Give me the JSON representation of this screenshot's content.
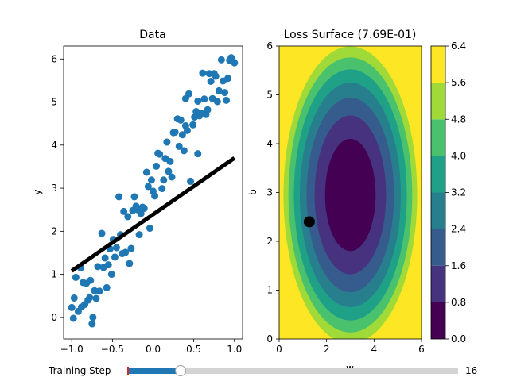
{
  "chart_data": [
    {
      "type": "scatter",
      "title": "Data",
      "xlabel": "x",
      "ylabel": "y",
      "xlim": [
        -1.1,
        1.1
      ],
      "ylim": [
        -0.5,
        6.3
      ],
      "xticks": [
        "-1.0",
        "-0.5",
        "0.0",
        "0.5",
        "1.0"
      ],
      "yticks": [
        "0",
        "1",
        "2",
        "3",
        "4",
        "5",
        "6"
      ],
      "series": [
        {
          "kind": "points",
          "color": "#1f77b4",
          "points": [
            [
              -1.0,
              0.23
            ],
            [
              -0.98,
              -0.02
            ],
            [
              -0.97,
              0.45
            ],
            [
              -0.95,
              0.93
            ],
            [
              -0.92,
              0.14
            ],
            [
              -0.89,
              1.15
            ],
            [
              -0.88,
              0.24
            ],
            [
              -0.86,
              0.81
            ],
            [
              -0.84,
              0.3
            ],
            [
              -0.82,
              0.79
            ],
            [
              -0.8,
              0.4
            ],
            [
              -0.78,
              0.46
            ],
            [
              -0.77,
              0.86
            ],
            [
              -0.75,
              -0.15
            ],
            [
              -0.74,
              0.0
            ],
            [
              -0.72,
              0.62
            ],
            [
              -0.7,
              0.44
            ],
            [
              -0.68,
              1.18
            ],
            [
              -0.66,
              0.61
            ],
            [
              -0.63,
              1.95
            ],
            [
              -0.61,
              1.16
            ],
            [
              -0.59,
              1.38
            ],
            [
              -0.57,
              0.69
            ],
            [
              -0.55,
              1.22
            ],
            [
              -0.53,
              1.59
            ],
            [
              -0.51,
              1.0
            ],
            [
              -0.49,
              1.81
            ],
            [
              -0.47,
              1.4
            ],
            [
              -0.45,
              1.62
            ],
            [
              -0.42,
              2.8
            ],
            [
              -0.4,
              1.92
            ],
            [
              -0.38,
              1.48
            ],
            [
              -0.36,
              2.46
            ],
            [
              -0.34,
              1.51
            ],
            [
              -0.31,
              2.34
            ],
            [
              -0.29,
              1.25
            ],
            [
              -0.27,
              1.6
            ],
            [
              -0.25,
              2.48
            ],
            [
              -0.23,
              2.8
            ],
            [
              -0.21,
              2.58
            ],
            [
              -0.19,
              2.5
            ],
            [
              -0.17,
              1.92
            ],
            [
              -0.15,
              2.41
            ],
            [
              -0.13,
              2.56
            ],
            [
              -0.11,
              2.53
            ],
            [
              -0.08,
              3.37
            ],
            [
              -0.06,
              3.04
            ],
            [
              -0.04,
              2.07
            ],
            [
              -0.02,
              3.19
            ],
            [
              0.0,
              2.93
            ],
            [
              0.02,
              2.82
            ],
            [
              0.04,
              3.51
            ],
            [
              0.06,
              3.81
            ],
            [
              0.08,
              3.79
            ],
            [
              0.11,
              2.99
            ],
            [
              0.13,
              3.19
            ],
            [
              0.15,
              3.69
            ],
            [
              0.17,
              4.07
            ],
            [
              0.19,
              3.39
            ],
            [
              0.21,
              3.62
            ],
            [
              0.23,
              3.26
            ],
            [
              0.25,
              4.29
            ],
            [
              0.27,
              4.3
            ],
            [
              0.3,
              4.61
            ],
            [
              0.32,
              3.97
            ],
            [
              0.34,
              4.58
            ],
            [
              0.36,
              4.24
            ],
            [
              0.38,
              3.87
            ],
            [
              0.4,
              4.45
            ],
            [
              0.42,
              4.34
            ],
            [
              0.4,
              5.08
            ],
            [
              0.44,
              5.19
            ],
            [
              0.46,
              3.16
            ],
            [
              0.49,
              4.47
            ],
            [
              0.51,
              4.65
            ],
            [
              0.53,
              4.78
            ],
            [
              0.55,
              5.02
            ],
            [
              0.57,
              4.68
            ],
            [
              0.59,
              4.74
            ],
            [
              0.61,
              5.67
            ],
            [
              0.63,
              5.07
            ],
            [
              0.65,
              4.71
            ],
            [
              0.67,
              4.82
            ],
            [
              0.69,
              5.66
            ],
            [
              0.71,
              5.48
            ],
            [
              0.73,
              5.08
            ],
            [
              0.75,
              5.66
            ],
            [
              0.77,
              5.6
            ],
            [
              0.79,
              5.01
            ],
            [
              0.81,
              5.26
            ],
            [
              0.84,
              5.98
            ],
            [
              0.86,
              5.49
            ],
            [
              0.88,
              5.22
            ],
            [
              0.9,
              5.04
            ],
            [
              0.92,
              5.55
            ],
            [
              0.94,
              5.97
            ],
            [
              0.96,
              6.03
            ],
            [
              0.98,
              5.95
            ],
            [
              1.0,
              5.91
            ],
            [
              0.55,
              3.8
            ]
          ]
        },
        {
          "kind": "line",
          "color": "#000000",
          "points": [
            [
              -1.0,
              1.08
            ],
            [
              1.0,
              3.7
            ]
          ]
        }
      ]
    },
    {
      "type": "contour",
      "title": "Loss Surface (7.69E-01)",
      "xlabel": "w",
      "ylabel": "b",
      "xlim": [
        0,
        6
      ],
      "ylim": [
        0,
        6
      ],
      "xticks": [
        "0",
        "2",
        "4",
        "6"
      ],
      "yticks": [
        "0",
        "1",
        "2",
        "3",
        "4",
        "5",
        "6"
      ],
      "minimum": {
        "w": 3.0,
        "b": 2.95
      },
      "axis_radii": {
        "w": 2.13,
        "b": 2.3
      },
      "levels": [
        0.0,
        0.8,
        1.6,
        2.4,
        3.2,
        4.0,
        4.8,
        5.6,
        6.4
      ],
      "level_colors": [
        "#440154",
        "#46327e",
        "#365c8d",
        "#277f8e",
        "#1fa187",
        "#4ac16d",
        "#a0da39",
        "#fde725"
      ],
      "colorbar_ticks": [
        "0.0",
        "0.8",
        "1.6",
        "2.4",
        "3.2",
        "4.0",
        "4.8",
        "5.6",
        "6.4"
      ],
      "current_point": {
        "w": 1.27,
        "b": 2.4
      }
    }
  ],
  "slider": {
    "label": "Training Step",
    "value": "16",
    "min": 0,
    "max": 100,
    "current": 16
  }
}
